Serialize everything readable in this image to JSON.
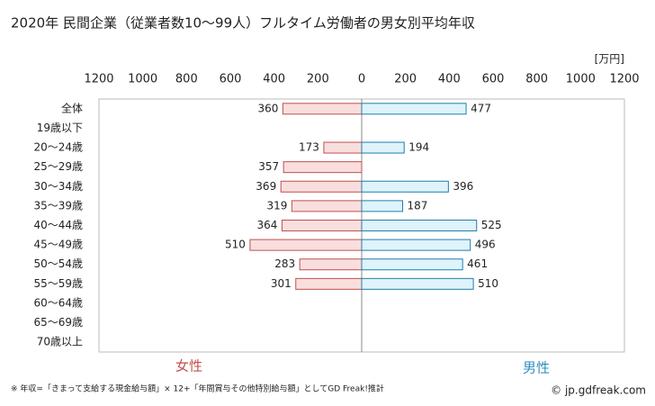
{
  "chart_data": {
    "type": "butterfly-bar",
    "title": "2020年 民間企業（従業者数10〜99人）フルタイム労働者の男女別平均年収",
    "unit": "[万円]",
    "categories": [
      "全体",
      "19歳以下",
      "20〜24歳",
      "25〜29歳",
      "30〜34歳",
      "35〜39歳",
      "40〜44歳",
      "45〜49歳",
      "50〜54歳",
      "55〜59歳",
      "60〜64歳",
      "65〜69歳",
      "70歳以上"
    ],
    "series": [
      {
        "name": "女性",
        "color": "#f9dede",
        "edge": "#c0504d",
        "label_color": "#c0504d",
        "values": [
          360,
          null,
          173,
          357,
          369,
          319,
          364,
          510,
          283,
          301,
          null,
          null,
          null
        ]
      },
      {
        "name": "男性",
        "color": "#dff3fa",
        "edge": "#1f7fae",
        "label_color": "#2e8fc3",
        "values": [
          477,
          null,
          194,
          null,
          396,
          187,
          525,
          496,
          461,
          510,
          null,
          null,
          null
        ]
      }
    ],
    "xlim": [
      -1200,
      1200
    ],
    "xticks": [
      {
        "value": -1200,
        "label": "1200"
      },
      {
        "value": -1000,
        "label": "1000"
      },
      {
        "value": -800,
        "label": "800"
      },
      {
        "value": -600,
        "label": "600"
      },
      {
        "value": -400,
        "label": "400"
      },
      {
        "value": -200,
        "label": "200"
      },
      0,
      200,
      400,
      600,
      800,
      1000,
      1200
    ],
    "footnote": "※ 年収=「きまって支給する現金給与額」× 12+「年間賞与その他特別給与額」としてGD Freak!推計",
    "credit": "© jp.gdfreak.com"
  }
}
